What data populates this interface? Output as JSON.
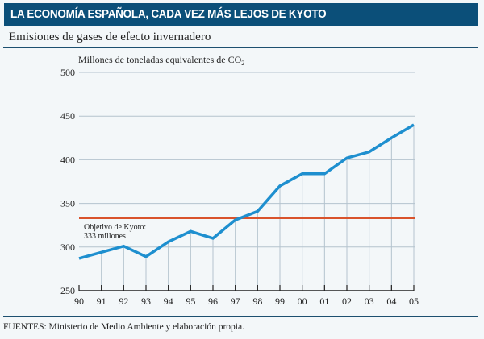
{
  "header": {
    "title": "LA ECONOMÍA ESPAÑOLA, CADA VEZ MÁS LEJOS DE KYOTO",
    "subtitle": "Emisiones de gases de efecto invernadero"
  },
  "footer": {
    "source": "FUENTES: Ministerio de Medio Ambiente y elaboración propia."
  },
  "colors": {
    "header_bg": "#0b4f79",
    "line": "#1e8fcf",
    "target": "#d9532c",
    "grid": "#b4c3ce",
    "axis": "#222222"
  },
  "chart_data": {
    "type": "line",
    "title": "Emisiones de gases de efecto invernadero",
    "ylabel": "Millones de toneladas equivalentes de CO₂",
    "xlabel": "",
    "categories": [
      "90",
      "91",
      "92",
      "93",
      "94",
      "95",
      "96",
      "97",
      "98",
      "99",
      "00",
      "01",
      "02",
      "03",
      "04",
      "05"
    ],
    "series": [
      {
        "name": "Emisiones",
        "values": [
          287,
          294,
          301,
          289,
          306,
          318,
          310,
          331,
          341,
          370,
          384,
          384,
          402,
          409,
          425,
          440
        ]
      }
    ],
    "ylim": [
      250,
      500
    ],
    "yticks": [
      250,
      300,
      350,
      400,
      450,
      500
    ],
    "grid": true,
    "reference_line": {
      "value": 333,
      "label_line1": "Objetivo de Kyoto:",
      "label_line2": "333 millones"
    },
    "legend": "none"
  }
}
